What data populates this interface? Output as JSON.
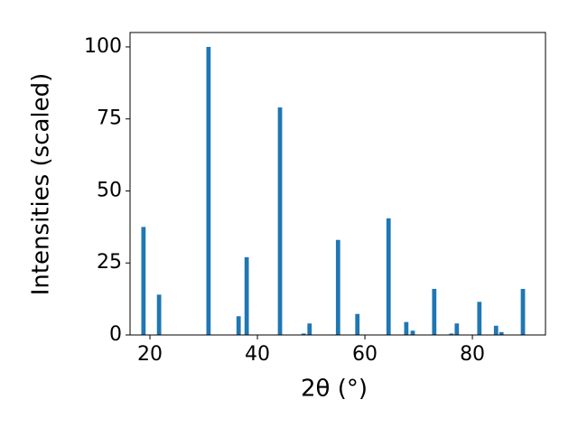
{
  "chart_data": {
    "type": "bar",
    "xlabel": "2θ (°)",
    "ylabel": "Intensities (scaled)",
    "color": "#1f77b4",
    "x": [
      18.8,
      21.7,
      30.9,
      36.5,
      38.0,
      44.2,
      48.6,
      49.7,
      55.0,
      58.6,
      64.4,
      67.7,
      68.9,
      72.9,
      76.1,
      77.1,
      81.3,
      84.4,
      85.4,
      89.4
    ],
    "values": [
      37.5,
      14,
      100,
      6.5,
      27,
      79,
      0.5,
      4,
      33,
      7.3,
      40.5,
      4.5,
      1.5,
      16,
      0.5,
      4,
      11.5,
      3.2,
      1,
      16
    ],
    "xlim": [
      16.3,
      93.6
    ],
    "ylim": [
      0,
      105
    ],
    "xticks": [
      20,
      40,
      60,
      80
    ],
    "yticks": [
      0,
      25,
      50,
      75,
      100
    ],
    "grid": false
  }
}
